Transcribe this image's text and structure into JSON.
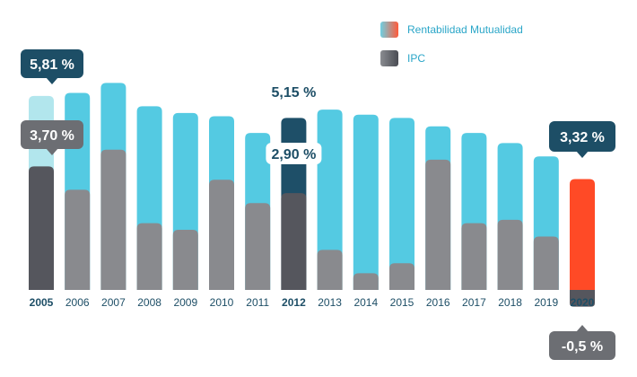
{
  "chart_data": {
    "type": "bar",
    "title": "",
    "xlabel": "",
    "ylabel": "",
    "categories": [
      "2005",
      "2006",
      "2007",
      "2008",
      "2009",
      "2010",
      "2011",
      "2012",
      "2013",
      "2014",
      "2015",
      "2016",
      "2017",
      "2018",
      "2019",
      "2020"
    ],
    "highlighted_categories": [
      "2005",
      "2012",
      "2020"
    ],
    "series": [
      {
        "name": "Rentabilidad Mutualidad",
        "values": [
          5.81,
          5.9,
          6.2,
          5.5,
          5.3,
          5.2,
          4.7,
          5.15,
          5.4,
          5.25,
          5.15,
          4.9,
          4.7,
          4.4,
          4.0,
          3.32
        ]
      },
      {
        "name": "IPC",
        "values": [
          3.7,
          3.0,
          4.2,
          2.0,
          1.8,
          3.3,
          2.6,
          2.9,
          1.2,
          0.5,
          0.8,
          3.9,
          2.0,
          2.1,
          1.6,
          -0.5
        ]
      }
    ],
    "data_labels": [
      {
        "category": "2005",
        "series": "Rentabilidad Mutualidad",
        "text": "5,81 %"
      },
      {
        "category": "2005",
        "series": "IPC",
        "text": "3,70 %"
      },
      {
        "category": "2012",
        "series": "Rentabilidad Mutualidad",
        "text": "5,15 %"
      },
      {
        "category": "2012",
        "series": "IPC",
        "text": "2,90 %"
      },
      {
        "category": "2020",
        "series": "Rentabilidad Mutualidad",
        "text": "3,32 %"
      },
      {
        "category": "2020",
        "series": "IPC",
        "text": "-0,5 %"
      }
    ],
    "ylim": [
      -1,
      7
    ],
    "grid": false,
    "legend_position": "top-right"
  },
  "legend": {
    "items": [
      {
        "label": "Rentabilidad Mutualidad",
        "color": "#5bcbe1"
      },
      {
        "label": "IPC",
        "color": "#58595f"
      }
    ]
  },
  "colors": {
    "mutualidad": "#54cae2",
    "mutualidad_2005": "#b2e6ed",
    "mutualidad_2012": "#1e4f68",
    "mutualidad_2020": "#ff4a26",
    "ipc": "#898a8e",
    "ipc_dark": "#55565d",
    "callout_blue": "#1d4e66",
    "callout_grey": "#6c6e73",
    "year_text": "#1d4e66"
  }
}
